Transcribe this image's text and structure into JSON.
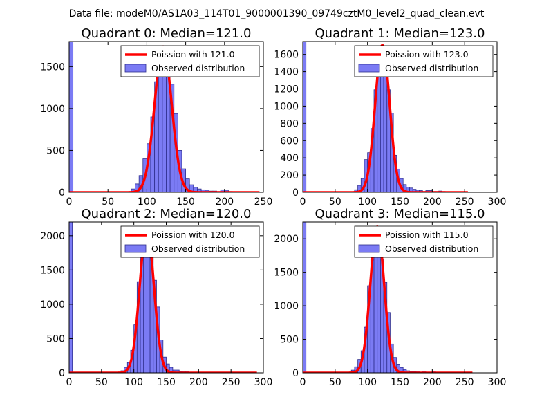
{
  "suptitle": "Data file: modeM0/AS1A03_114T01_9000001390_09749cztM0_level2_quad_clean.evt",
  "colors": {
    "bar_fill": "#7b7bf4",
    "bar_edge": "#2e2e8c",
    "curve": "#ff0000"
  },
  "chart_data": [
    {
      "type": "bar",
      "title": "Quadrant 0: Median=121.0",
      "xlim": [
        0,
        250
      ],
      "ylim": [
        0,
        1800
      ],
      "xticks": [
        0,
        50,
        100,
        150,
        200,
        250
      ],
      "yticks": [
        0,
        500,
        1000,
        1500
      ],
      "legend": [
        "Poission with 121.0",
        "Observed distribution"
      ],
      "bin_width": 5,
      "bins": [
        [
          0,
          1800
        ],
        [
          80,
          40
        ],
        [
          85,
          100
        ],
        [
          90,
          200
        ],
        [
          95,
          400
        ],
        [
          100,
          580
        ],
        [
          105,
          900
        ],
        [
          110,
          1320
        ],
        [
          115,
          1520
        ],
        [
          120,
          1720
        ],
        [
          125,
          1610
        ],
        [
          130,
          1290
        ],
        [
          135,
          940
        ],
        [
          140,
          500
        ],
        [
          145,
          280
        ],
        [
          150,
          160
        ],
        [
          155,
          90
        ],
        [
          160,
          60
        ],
        [
          165,
          40
        ],
        [
          170,
          30
        ],
        [
          175,
          25
        ],
        [
          180,
          15
        ],
        [
          185,
          15
        ],
        [
          190,
          10
        ],
        [
          195,
          30
        ],
        [
          200,
          25
        ],
        [
          205,
          10
        ],
        [
          210,
          5
        ],
        [
          215,
          5
        ],
        [
          220,
          5
        ],
        [
          225,
          5
        ]
      ],
      "poisson": {
        "mean": 121.0,
        "peak": 1740,
        "x_range": [
          0,
          245
        ]
      }
    },
    {
      "type": "bar",
      "title": "Quadrant 1: Median=123.0",
      "xlim": [
        0,
        300
      ],
      "ylim": [
        0,
        1750
      ],
      "xticks": [
        0,
        50,
        100,
        150,
        200,
        250,
        300
      ],
      "yticks": [
        0,
        200,
        400,
        600,
        800,
        1000,
        1200,
        1400,
        1600
      ],
      "legend": [
        "Poission with 123.0",
        "Observed distribution"
      ],
      "bin_width": 5,
      "bins": [
        [
          0,
          1750
        ],
        [
          80,
          30
        ],
        [
          85,
          80
        ],
        [
          90,
          160
        ],
        [
          95,
          380
        ],
        [
          100,
          460
        ],
        [
          105,
          740
        ],
        [
          110,
          1190
        ],
        [
          115,
          1450
        ],
        [
          120,
          1590
        ],
        [
          125,
          1620
        ],
        [
          130,
          1190
        ],
        [
          135,
          920
        ],
        [
          140,
          430
        ],
        [
          145,
          270
        ],
        [
          150,
          160
        ],
        [
          155,
          90
        ],
        [
          160,
          60
        ],
        [
          165,
          50
        ],
        [
          170,
          35
        ],
        [
          175,
          25
        ],
        [
          180,
          20
        ],
        [
          185,
          10
        ],
        [
          190,
          20
        ],
        [
          195,
          20
        ],
        [
          200,
          10
        ],
        [
          205,
          10
        ],
        [
          210,
          15
        ],
        [
          215,
          10
        ],
        [
          220,
          5
        ],
        [
          225,
          5
        ]
      ],
      "poisson": {
        "mean": 123.0,
        "peak": 1710,
        "x_range": [
          0,
          255
        ]
      }
    },
    {
      "type": "bar",
      "title": "Quadrant 2: Median=120.0",
      "xlim": [
        0,
        300
      ],
      "ylim": [
        0,
        2200
      ],
      "xticks": [
        0,
        50,
        100,
        150,
        200,
        250,
        300
      ],
      "yticks": [
        0,
        500,
        1000,
        1500,
        2000
      ],
      "legend": [
        "Poission with 120.0",
        "Observed distribution"
      ],
      "bin_width": 5,
      "bins": [
        [
          0,
          2200
        ],
        [
          80,
          30
        ],
        [
          85,
          80
        ],
        [
          90,
          150
        ],
        [
          95,
          330
        ],
        [
          100,
          700
        ],
        [
          105,
          1330
        ],
        [
          110,
          1740
        ],
        [
          115,
          2000
        ],
        [
          120,
          2040
        ],
        [
          125,
          1800
        ],
        [
          130,
          1350
        ],
        [
          135,
          960
        ],
        [
          140,
          480
        ],
        [
          145,
          230
        ],
        [
          150,
          130
        ],
        [
          155,
          80
        ],
        [
          160,
          40
        ],
        [
          165,
          40
        ],
        [
          170,
          20
        ],
        [
          175,
          15
        ],
        [
          180,
          15
        ],
        [
          185,
          10
        ],
        [
          190,
          10
        ],
        [
          195,
          10
        ],
        [
          200,
          10
        ],
        [
          205,
          10
        ],
        [
          210,
          10
        ],
        [
          215,
          10
        ],
        [
          220,
          10
        ],
        [
          225,
          10
        ],
        [
          230,
          5
        ],
        [
          235,
          5
        ]
      ],
      "poisson": {
        "mean": 120.0,
        "peak": 2100,
        "x_range": [
          0,
          290
        ]
      }
    },
    {
      "type": "bar",
      "title": "Quadrant 3: Median=115.0",
      "xlim": [
        0,
        300
      ],
      "ylim": [
        0,
        2250
      ],
      "xticks": [
        0,
        50,
        100,
        150,
        200,
        250,
        300
      ],
      "yticks": [
        0,
        500,
        1000,
        1500,
        2000
      ],
      "legend": [
        "Poission with 115.0",
        "Observed distribution"
      ],
      "bin_width": 5,
      "bins": [
        [
          0,
          2250
        ],
        [
          75,
          40
        ],
        [
          80,
          90
        ],
        [
          85,
          200
        ],
        [
          90,
          330
        ],
        [
          95,
          680
        ],
        [
          100,
          1300
        ],
        [
          105,
          1700
        ],
        [
          110,
          1950
        ],
        [
          115,
          2000
        ],
        [
          120,
          1700
        ],
        [
          125,
          1350
        ],
        [
          130,
          900
        ],
        [
          135,
          430
        ],
        [
          140,
          230
        ],
        [
          145,
          130
        ],
        [
          150,
          80
        ],
        [
          155,
          50
        ],
        [
          160,
          30
        ],
        [
          165,
          20
        ],
        [
          170,
          20
        ],
        [
          175,
          15
        ],
        [
          180,
          10
        ],
        [
          185,
          15
        ],
        [
          190,
          10
        ],
        [
          195,
          10
        ],
        [
          200,
          25
        ],
        [
          205,
          10
        ],
        [
          210,
          10
        ],
        [
          215,
          5
        ],
        [
          220,
          5
        ],
        [
          225,
          5
        ]
      ],
      "poisson": {
        "mean": 115.0,
        "peak": 2180,
        "x_range": [
          0,
          262
        ]
      }
    }
  ]
}
